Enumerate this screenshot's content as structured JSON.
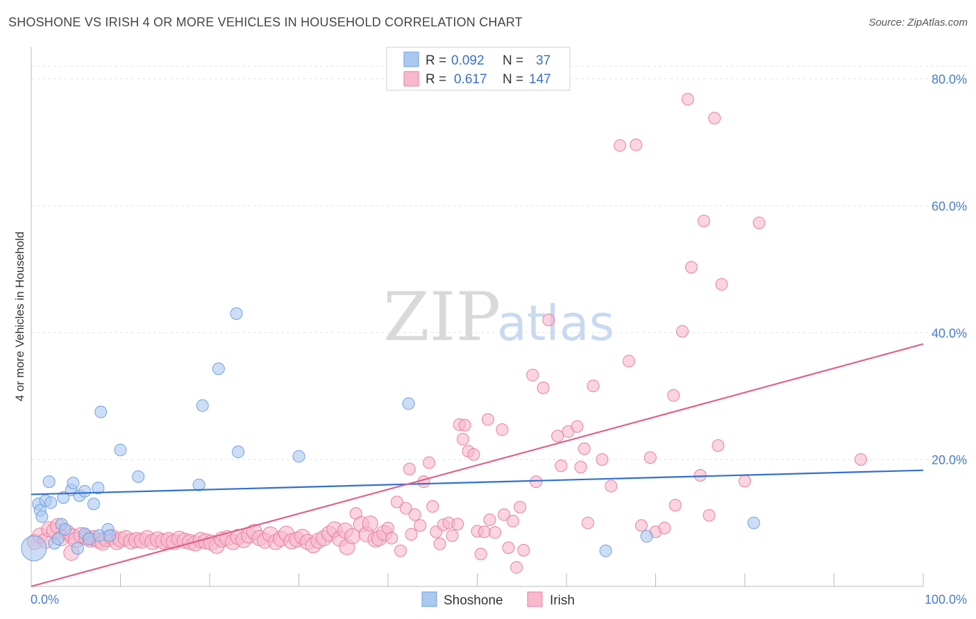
{
  "title": "SHOSHONE VS IRISH 4 OR MORE VEHICLES IN HOUSEHOLD CORRELATION CHART",
  "source": "Source: ZipAtlas.com",
  "watermark": {
    "zip": "ZIP",
    "atlas": "atlas"
  },
  "legend": {
    "rows": [
      {
        "r_label": "R =",
        "r_value": "0.092",
        "n_label": "N =",
        "n_value": "37",
        "color": "#aac8f0",
        "stroke": "#6f9fe0"
      },
      {
        "r_label": "R =",
        "r_value": "0.617",
        "n_label": "N =",
        "n_value": "147",
        "color": "#f7b8cb",
        "stroke": "#e87fa0"
      }
    ]
  },
  "bottom_legend": [
    {
      "label": "Shoshone",
      "color": "#aac8f0",
      "stroke": "#6f9fe0"
    },
    {
      "label": "Irish",
      "color": "#f7b8cb",
      "stroke": "#e87fa0"
    }
  ],
  "chart_data": {
    "type": "scatter",
    "title": "SHOSHONE VS IRISH 4 OR MORE VEHICLES IN HOUSEHOLD CORRELATION CHART",
    "xlabel": "",
    "ylabel": "4 or more Vehicles in Household",
    "xlim": [
      0,
      100
    ],
    "ylim": [
      0,
      84
    ],
    "x_tick_labels": [
      "0.0%",
      "100.0%"
    ],
    "y_ticks": [
      20,
      40,
      60,
      80
    ],
    "y_tick_labels": [
      "20.0%",
      "40.0%",
      "60.0%",
      "80.0%"
    ],
    "grid": true,
    "legend_placement": "top-center",
    "series": [
      {
        "name": "Shoshone",
        "color": "#6f9fe0",
        "fill": "#aac8f0",
        "trend": {
          "x": [
            0,
            100
          ],
          "y": [
            14.5,
            18.3
          ],
          "color": "#2f6fd0"
        },
        "points": [
          [
            0.3,
            6.0
          ],
          [
            0.8,
            13.0
          ],
          [
            1.0,
            12.0
          ],
          [
            1.2,
            11.0
          ],
          [
            1.6,
            13.5
          ],
          [
            2.0,
            16.5
          ],
          [
            2.2,
            13.2
          ],
          [
            2.6,
            6.8
          ],
          [
            3.0,
            7.5
          ],
          [
            3.4,
            9.8
          ],
          [
            3.6,
            14.0
          ],
          [
            3.8,
            9.0
          ],
          [
            4.5,
            15.2
          ],
          [
            4.7,
            16.3
          ],
          [
            5.2,
            6.0
          ],
          [
            5.4,
            14.3
          ],
          [
            6.0,
            8.3
          ],
          [
            6.0,
            15.0
          ],
          [
            6.5,
            7.5
          ],
          [
            7.0,
            13.0
          ],
          [
            7.5,
            15.5
          ],
          [
            7.6,
            8.0
          ],
          [
            7.8,
            27.5
          ],
          [
            8.6,
            9.0
          ],
          [
            8.8,
            8.0
          ],
          [
            10.0,
            21.5
          ],
          [
            12.0,
            17.3
          ],
          [
            18.8,
            16.0
          ],
          [
            19.2,
            28.5
          ],
          [
            21.0,
            34.3
          ],
          [
            23.0,
            43.0
          ],
          [
            23.2,
            21.2
          ],
          [
            30.0,
            20.5
          ],
          [
            42.3,
            28.8
          ],
          [
            64.4,
            5.6
          ],
          [
            69.0,
            7.9
          ],
          [
            81.0,
            10.0
          ]
        ]
      },
      {
        "name": "Irish",
        "color": "#e87fa0",
        "fill": "#f7b8cb",
        "trend": {
          "x": [
            0,
            100
          ],
          "y": [
            0,
            38.2
          ],
          "color": "#e0608a"
        },
        "points": [
          [
            0.4,
            7.0
          ],
          [
            1.0,
            8.0
          ],
          [
            1.6,
            7.2
          ],
          [
            2.0,
            9.0
          ],
          [
            2.6,
            8.8
          ],
          [
            3.0,
            9.5
          ],
          [
            3.4,
            7.6
          ],
          [
            4.0,
            8.5
          ],
          [
            4.6,
            7.9
          ],
          [
            4.5,
            5.3
          ],
          [
            5.0,
            7.3
          ],
          [
            5.6,
            8.1
          ],
          [
            6.2,
            7.7
          ],
          [
            6.6,
            7.4
          ],
          [
            7.0,
            7.6
          ],
          [
            7.6,
            7.2
          ],
          [
            8.0,
            6.9
          ],
          [
            8.4,
            7.5
          ],
          [
            9.0,
            7.8
          ],
          [
            9.6,
            7.0
          ],
          [
            10.0,
            7.4
          ],
          [
            10.6,
            7.6
          ],
          [
            11.2,
            7.1
          ],
          [
            11.8,
            7.3
          ],
          [
            12.4,
            7.2
          ],
          [
            13.0,
            7.6
          ],
          [
            13.6,
            7.0
          ],
          [
            14.2,
            7.4
          ],
          [
            14.8,
            7.1
          ],
          [
            15.4,
            7.3
          ],
          [
            16.0,
            7.0
          ],
          [
            16.6,
            7.5
          ],
          [
            17.2,
            7.2
          ],
          [
            17.8,
            7.0
          ],
          [
            18.4,
            6.8
          ],
          [
            19.0,
            7.3
          ],
          [
            19.6,
            7.1
          ],
          [
            20.2,
            6.9
          ],
          [
            20.8,
            6.4
          ],
          [
            21.4,
            7.4
          ],
          [
            22.0,
            7.6
          ],
          [
            22.6,
            7.0
          ],
          [
            23.2,
            7.8
          ],
          [
            23.8,
            7.3
          ],
          [
            24.4,
            8.0
          ],
          [
            25.0,
            8.6
          ],
          [
            25.6,
            7.6
          ],
          [
            26.2,
            7.2
          ],
          [
            26.8,
            8.2
          ],
          [
            27.4,
            7.0
          ],
          [
            28.0,
            7.5
          ],
          [
            28.6,
            8.3
          ],
          [
            29.2,
            7.1
          ],
          [
            29.8,
            7.4
          ],
          [
            30.4,
            7.8
          ],
          [
            31.0,
            7.0
          ],
          [
            31.6,
            6.5
          ],
          [
            32.2,
            7.2
          ],
          [
            32.8,
            7.6
          ],
          [
            33.4,
            8.3
          ],
          [
            34.0,
            9.0
          ],
          [
            34.6,
            7.5
          ],
          [
            35.2,
            8.8
          ],
          [
            35.4,
            6.2
          ],
          [
            36.0,
            7.9
          ],
          [
            36.4,
            11.5
          ],
          [
            37.0,
            9.8
          ],
          [
            37.6,
            8.2
          ],
          [
            38.0,
            9.9
          ],
          [
            38.6,
            7.4
          ],
          [
            39.0,
            7.6
          ],
          [
            39.6,
            8.4
          ],
          [
            40.0,
            9.2
          ],
          [
            40.4,
            7.6
          ],
          [
            41.0,
            13.3
          ],
          [
            41.4,
            5.6
          ],
          [
            42.0,
            12.3
          ],
          [
            42.4,
            18.5
          ],
          [
            42.6,
            8.2
          ],
          [
            43.0,
            11.3
          ],
          [
            43.6,
            9.6
          ],
          [
            44.0,
            16.5
          ],
          [
            44.6,
            19.5
          ],
          [
            45.0,
            12.6
          ],
          [
            45.4,
            8.6
          ],
          [
            45.8,
            6.7
          ],
          [
            46.2,
            9.7
          ],
          [
            46.8,
            10.0
          ],
          [
            47.2,
            8.0
          ],
          [
            47.8,
            9.8
          ],
          [
            48.0,
            25.5
          ],
          [
            48.4,
            23.2
          ],
          [
            48.6,
            25.4
          ],
          [
            49.0,
            21.3
          ],
          [
            49.6,
            20.8
          ],
          [
            50.0,
            8.7
          ],
          [
            50.4,
            5.1
          ],
          [
            50.8,
            8.6
          ],
          [
            51.2,
            26.3
          ],
          [
            51.4,
            10.5
          ],
          [
            52.0,
            8.5
          ],
          [
            52.8,
            24.7
          ],
          [
            53.0,
            11.3
          ],
          [
            53.5,
            6.1
          ],
          [
            54.0,
            10.3
          ],
          [
            54.4,
            3.0
          ],
          [
            54.8,
            12.5
          ],
          [
            55.2,
            5.7
          ],
          [
            56.2,
            33.3
          ],
          [
            56.6,
            16.5
          ],
          [
            57.4,
            31.3
          ],
          [
            58.0,
            42.0
          ],
          [
            59.0,
            23.7
          ],
          [
            59.4,
            19.0
          ],
          [
            60.2,
            24.4
          ],
          [
            61.2,
            25.2
          ],
          [
            61.6,
            18.8
          ],
          [
            62.0,
            21.7
          ],
          [
            62.4,
            10.0
          ],
          [
            63.0,
            31.6
          ],
          [
            64.0,
            20.0
          ],
          [
            65.0,
            15.8
          ],
          [
            66.0,
            69.5
          ],
          [
            67.0,
            35.5
          ],
          [
            67.8,
            69.6
          ],
          [
            68.4,
            9.6
          ],
          [
            69.4,
            20.3
          ],
          [
            70.0,
            8.6
          ],
          [
            71.0,
            9.2
          ],
          [
            72.0,
            30.1
          ],
          [
            72.2,
            12.8
          ],
          [
            73.0,
            40.2
          ],
          [
            73.6,
            76.8
          ],
          [
            74.0,
            50.3
          ],
          [
            75.0,
            17.5
          ],
          [
            75.4,
            57.6
          ],
          [
            76.0,
            11.2
          ],
          [
            76.6,
            73.8
          ],
          [
            77.0,
            22.2
          ],
          [
            77.4,
            47.6
          ],
          [
            80.0,
            16.6
          ],
          [
            81.6,
            57.3
          ],
          [
            93.0,
            20.0
          ]
        ]
      }
    ]
  }
}
